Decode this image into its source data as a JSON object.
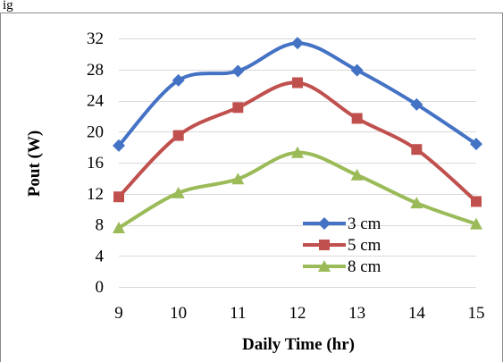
{
  "header_fragment": "ig",
  "chart_data": {
    "type": "line",
    "title": "",
    "xlabel": "Daily Time (hr)",
    "ylabel": "Pout (W)",
    "x": [
      9,
      10,
      11,
      12,
      13,
      14,
      15
    ],
    "x_tick_labels": [
      "9",
      "10",
      "11",
      "12",
      "13",
      "14",
      "15"
    ],
    "ylim": [
      0,
      32
    ],
    "y_ticks": [
      0,
      4,
      8,
      12,
      16,
      20,
      24,
      28,
      32
    ],
    "grid": "horizontal",
    "smooth": true,
    "legend_position": "bottom-right",
    "series": [
      {
        "name": "3 cm",
        "color": "#4472C4",
        "marker": "diamond",
        "values": [
          18.2,
          26.6,
          27.8,
          31.4,
          27.9,
          23.5,
          18.4
        ]
      },
      {
        "name": "5 cm",
        "color": "#C0504D",
        "marker": "square",
        "values": [
          11.6,
          19.5,
          23.1,
          26.3,
          21.7,
          17.7,
          11.0
        ]
      },
      {
        "name": "8 cm",
        "color": "#9BBB59",
        "marker": "triangle",
        "values": [
          7.6,
          12.1,
          13.9,
          17.3,
          14.4,
          10.8,
          8.1
        ]
      }
    ]
  }
}
